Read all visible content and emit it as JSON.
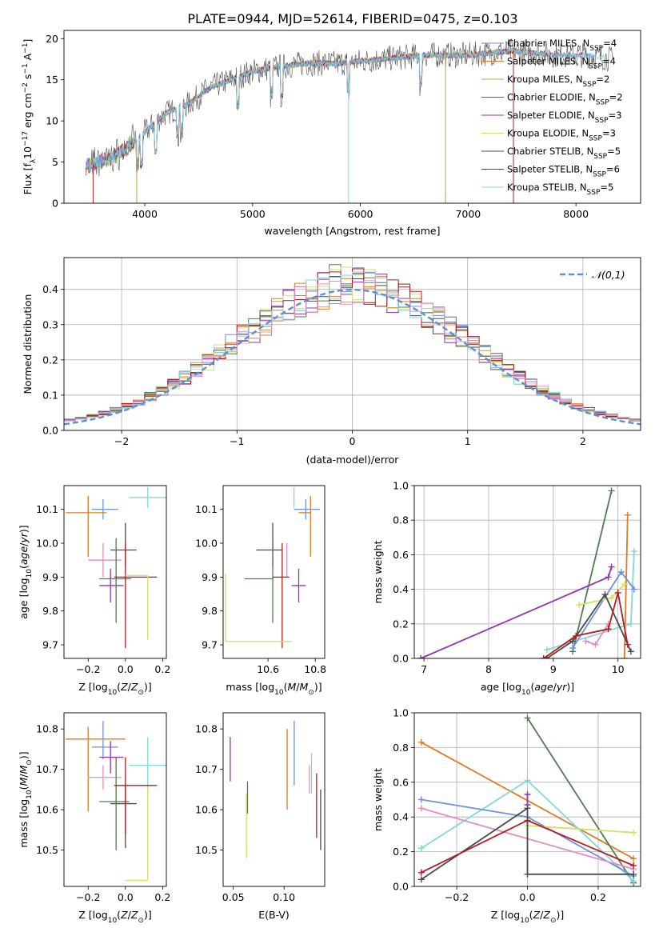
{
  "title": "PLATE=0944, MJD=52614, FIBERID=0475, z=0.103",
  "legend": {
    "names": [
      "Chabrier MILES, N",
      "Salpeter MILES, N",
      "Kroupa MILES, N",
      "Chabrier ELODIE, N",
      "Salpeter ELODIE, N",
      "Kroupa ELODIE, N",
      "Chabrier STELIB, N",
      "Salpeter STELIB, N",
      "Kroupa STELIB, N"
    ],
    "sub": "SSP",
    "nssp": [
      "=4",
      "=4",
      "=2",
      "=2",
      "=3",
      "=3",
      "=5",
      "=6",
      "=5"
    ],
    "colors": [
      "#6f8fe0",
      "#e07b23",
      "#c2a14a",
      "#4f7d4f",
      "#8e35b0",
      "#d4de6c",
      "#4a4a4a",
      "#b51c1c",
      "#83d6de"
    ]
  },
  "panel2_legend": "𝒩(0,1)",
  "chart_data": [
    {
      "type": "line",
      "id": "spectrum",
      "xlabel": "wavelength [Angstrom, rest frame]",
      "ylabel_main": "Flux [f",
      "ylabel_lambda": "λ",
      "ylabel_rest": "10",
      "ylabel_exp": "−17",
      "ylabel_units": " erg cm",
      "ylabel_exp2": "−2",
      "ylabel_units2": " s",
      "ylabel_exp3": "−1",
      "ylabel_units3": " A",
      "ylabel_exp4": "−1",
      "ylabel_close": "]",
      "xlim": [
        3250,
        8600
      ],
      "ylim": [
        0,
        21
      ],
      "xticks": [
        "4000",
        "5000",
        "6000",
        "7000",
        "8000"
      ],
      "yticks": [
        "0",
        "5",
        "10",
        "15",
        "20"
      ],
      "continuum_x": [
        3450,
        3700,
        3950,
        4200,
        4400,
        4600,
        4800,
        5000,
        5200,
        5500,
        5800,
        6200,
        6600,
        7000,
        7400,
        7800,
        8100,
        8350
      ],
      "continuum_y": [
        4.5,
        5.5,
        8,
        11,
        12,
        14,
        15,
        16,
        16.5,
        17,
        17,
        17.5,
        18,
        18,
        18.5,
        18,
        18,
        17.5
      ]
    },
    {
      "type": "bar",
      "id": "residuals",
      "xlabel": "(data-model)/error",
      "ylabel": "Normed distribution",
      "xlim": [
        -2.5,
        2.5
      ],
      "ylim": [
        0,
        0.49
      ],
      "xticks": [
        "−2",
        "−1",
        "0",
        "1",
        "2"
      ],
      "yticks": [
        "0.0",
        "0.1",
        "0.2",
        "0.3",
        "0.4"
      ],
      "bin_width": 0.1,
      "grid": true,
      "legend_position": "upper-right"
    },
    {
      "type": "scatter",
      "id": "age-vs-Z",
      "xlabel": "Z [log",
      "ylabel": "age  [log",
      "xlim": [
        -0.33,
        0.22
      ],
      "ylim": [
        9.66,
        10.17
      ],
      "xticks": [
        "−0.2",
        "0.0",
        "0.2"
      ],
      "yticks": [
        "9.7",
        "9.8",
        "9.9",
        "10.0",
        "10.1"
      ],
      "points": [
        {
          "x": -0.12,
          "y": 10.1,
          "xerr": [
            0.06,
            0.08
          ],
          "yerr": [
            0.03,
            0.03
          ],
          "color": "#6f8fe0"
        },
        {
          "x": -0.2,
          "y": 10.09,
          "xerr": [
            0.12,
            0.1
          ],
          "yerr": [
            0.13,
            0.05
          ],
          "color": "#e07b23"
        },
        {
          "x": 0.12,
          "y": 10.135,
          "xerr": [
            0.1,
            0.14
          ],
          "yerr": [
            0.03,
            0.03
          ],
          "color": "#83d6de"
        },
        {
          "x": -0.12,
          "y": 9.95,
          "xerr": [
            0.08,
            0.1
          ],
          "yerr": [
            0.05,
            0.05
          ],
          "color": "#e38ec3"
        },
        {
          "x": -0.08,
          "y": 9.875,
          "xerr": [
            0.06,
            0.07
          ],
          "yerr": [
            0.05,
            0.05
          ],
          "color": "#8e35b0"
        },
        {
          "x": 0.0,
          "y": 9.98,
          "xerr": [
            0.08,
            0.06
          ],
          "yerr": [
            0.05,
            0.08
          ],
          "color": "#4a4a4a"
        },
        {
          "x": -0.05,
          "y": 9.895,
          "xerr": [
            0.09,
            0.08
          ],
          "yerr": [
            0.13,
            0.12
          ],
          "color": "#4f7d4f"
        },
        {
          "x": 0.0,
          "y": 9.9,
          "xerr": [
            0.06,
            0.17
          ],
          "yerr": [
            0.21,
            0.1
          ],
          "color": "#b51c1c"
        },
        {
          "x": 0.12,
          "y": 9.905,
          "xerr": [
            0.12,
            0.0
          ],
          "yerr": [
            0.19,
            0.0
          ],
          "color": "#d4de6c"
        }
      ]
    },
    {
      "type": "scatter",
      "id": "age-vs-mass",
      "xlabel": "mass [log",
      "ylabel": "",
      "xlim": [
        10.41,
        10.84
      ],
      "ylim": [
        9.66,
        10.17
      ],
      "xticks": [
        "10.6",
        "10.8"
      ],
      "yticks": [
        "9.7",
        "9.8",
        "9.9",
        "10.0",
        "10.1"
      ],
      "points": [
        {
          "x": 10.76,
          "y": 10.1,
          "xerr": [
            0.05,
            0.06
          ],
          "yerr": [
            0.03,
            0.03
          ],
          "color": "#6f8fe0"
        },
        {
          "x": 10.78,
          "y": 10.09,
          "xerr": [
            0.05,
            0.0
          ],
          "yerr": [
            0.13,
            0.05
          ],
          "color": "#e07b23"
        },
        {
          "x": 10.71,
          "y": 10.135,
          "xerr": [
            0.0,
            0.0
          ],
          "yerr": [
            0.03,
            0.03
          ],
          "color": "#83d6de"
        },
        {
          "x": 10.68,
          "y": 9.95,
          "xerr": [
            0.0,
            0.0
          ],
          "yerr": [
            0.05,
            0.05
          ],
          "color": "#e38ec3"
        },
        {
          "x": 10.73,
          "y": 9.875,
          "xerr": [
            0.03,
            0.03
          ],
          "yerr": [
            0.05,
            0.05
          ],
          "color": "#8e35b0"
        },
        {
          "x": 10.62,
          "y": 9.98,
          "xerr": [
            0.07,
            0.04
          ],
          "yerr": [
            0.05,
            0.08
          ],
          "color": "#4a4a4a"
        },
        {
          "x": 10.62,
          "y": 9.895,
          "xerr": [
            0.12,
            0.0
          ],
          "yerr": [
            0.13,
            0.12
          ],
          "color": "#4f7d4f"
        },
        {
          "x": 10.66,
          "y": 9.9,
          "xerr": [
            0.04,
            0.03
          ],
          "yerr": [
            0.21,
            0.1
          ],
          "color": "#b51c1c"
        },
        {
          "x": 10.42,
          "y": 9.71,
          "xerr": [
            0.0,
            0.28
          ],
          "yerr": [
            0.0,
            0.2
          ],
          "color": "#d4de6c"
        }
      ]
    },
    {
      "type": "line",
      "id": "weight-vs-age",
      "xlabel": "age  [log",
      "ylabel": "mass weight",
      "xlim": [
        6.85,
        10.35
      ],
      "ylim": [
        0,
        1
      ],
      "xticks": [
        "7",
        "8",
        "9",
        "10"
      ],
      "yticks": [
        "0.0",
        "0.2",
        "0.4",
        "0.6",
        "0.8",
        "1.0"
      ],
      "grid": true,
      "series": [
        {
          "color": "#4f7d4f",
          "x": [
            9.3,
            9.9
          ],
          "y": [
            0.04,
            0.97
          ]
        },
        {
          "color": "#e07b23",
          "x": [
            10.1,
            10.15
          ],
          "y": [
            0.0,
            0.83
          ]
        },
        {
          "color": "#8e35b0",
          "x": [
            6.95,
            9.85,
            9.9
          ],
          "y": [
            0.0,
            0.47,
            0.53
          ]
        },
        {
          "color": "#83d6de",
          "x": [
            8.9,
            10.2,
            10.25
          ],
          "y": [
            0.05,
            0.2,
            0.62
          ]
        },
        {
          "color": "#6f8fe0",
          "x": [
            9.3,
            10.05,
            10.25
          ],
          "y": [
            0.06,
            0.5,
            0.4
          ]
        },
        {
          "color": "#d4de6c",
          "x": [
            9.4,
            9.9,
            10.1
          ],
          "y": [
            0.31,
            0.35,
            0.43
          ]
        },
        {
          "color": "#4a4a4a",
          "x": [
            8.9,
            9.3,
            9.8,
            10.2
          ],
          "y": [
            0.0,
            0.1,
            0.37,
            0.04
          ]
        },
        {
          "color": "#e38ec3",
          "x": [
            9.5,
            9.65,
            9.85
          ],
          "y": [
            0.1,
            0.08,
            0.2
          ]
        },
        {
          "color": "#b51c1c",
          "x": [
            8.85,
            9.35,
            9.85,
            10.0,
            10.15
          ],
          "y": [
            0.0,
            0.13,
            0.17,
            0.38,
            0.08
          ]
        }
      ]
    },
    {
      "type": "scatter",
      "id": "mass-vs-Z",
      "xlabel": "Z [log",
      "ylabel": "mass [log",
      "xlim": [
        -0.33,
        0.22
      ],
      "ylim": [
        10.41,
        10.84
      ],
      "xticks": [
        "−0.2",
        "0.0",
        "0.2"
      ],
      "yticks": [
        "10.5",
        "10.6",
        "10.7",
        "10.8"
      ],
      "points": [
        {
          "x": -0.12,
          "y": 10.755,
          "xerr": [
            0.06,
            0.08
          ],
          "yerr": [
            0.03,
            0.065
          ],
          "color": "#6f8fe0"
        },
        {
          "x": -0.2,
          "y": 10.775,
          "xerr": [
            0.12,
            0.2
          ],
          "yerr": [
            0.18,
            0.03
          ],
          "color": "#e07b23"
        },
        {
          "x": 0.12,
          "y": 10.71,
          "xerr": [
            0.1,
            0.1
          ],
          "yerr": [
            0.07,
            0.07
          ],
          "color": "#83d6de"
        },
        {
          "x": -0.12,
          "y": 10.68,
          "xerr": [
            0.08,
            0.1
          ],
          "yerr": [
            0.03,
            0.03
          ],
          "color": "#e38ec3"
        },
        {
          "x": -0.08,
          "y": 10.73,
          "xerr": [
            0.06,
            0.07
          ],
          "yerr": [
            0.04,
            0.04
          ],
          "color": "#8e35b0"
        },
        {
          "x": 0.0,
          "y": 10.615,
          "xerr": [
            0.08,
            0.06
          ],
          "yerr": [
            0.11,
            0.05
          ],
          "color": "#4a4a4a"
        },
        {
          "x": -0.05,
          "y": 10.62,
          "xerr": [
            0.09,
            0.07
          ],
          "yerr": [
            0.12,
            0.11
          ],
          "color": "#4f7d4f"
        },
        {
          "x": 0.0,
          "y": 10.66,
          "xerr": [
            0.06,
            0.17
          ],
          "yerr": [
            0.12,
            0.07
          ],
          "color": "#b51c1c"
        },
        {
          "x": 0.12,
          "y": 10.425,
          "xerr": [
            0.12,
            0.0
          ],
          "yerr": [
            0.0,
            0.23
          ],
          "color": "#d4de6c"
        }
      ]
    },
    {
      "type": "scatter",
      "id": "mass-vs-ebv",
      "xlabel": "E(B-V)",
      "ylabel": "",
      "xlim": [
        0.04,
        0.14
      ],
      "ylim": [
        10.41,
        10.84
      ],
      "xticks": [
        "0.05",
        "0.10"
      ],
      "yticks": [
        "10.5",
        "10.6",
        "10.7",
        "10.8"
      ],
      "points": [
        {
          "x": 0.047,
          "y": 10.73,
          "yerr": [
            0.06,
            0.05
          ],
          "color": "#8e35b0"
        },
        {
          "x": 0.063,
          "y": 10.56,
          "yerr": [
            0.08,
            0.08
          ],
          "color": "#d4de6c"
        },
        {
          "x": 0.064,
          "y": 10.62,
          "yerr": [
            0.03,
            0.05
          ],
          "color": "#4f7d4f"
        },
        {
          "x": 0.103,
          "y": 10.7,
          "yerr": [
            0.1,
            0.1
          ],
          "color": "#e07b23"
        },
        {
          "x": 0.11,
          "y": 10.74,
          "yerr": [
            0.08,
            0.08
          ],
          "color": "#6f8fe0"
        },
        {
          "x": 0.127,
          "y": 10.7,
          "yerr": [
            0.06,
            0.04
          ],
          "color": "#83d6de"
        },
        {
          "x": 0.125,
          "y": 10.68,
          "yerr": [
            0.04,
            0.03
          ],
          "color": "#e38ec3"
        },
        {
          "x": 0.132,
          "y": 10.62,
          "yerr": [
            0.09,
            0.07
          ],
          "color": "#b51c1c"
        },
        {
          "x": 0.136,
          "y": 10.57,
          "yerr": [
            0.07,
            0.08
          ],
          "color": "#4a4a4a"
        }
      ]
    },
    {
      "type": "line",
      "id": "weight-vs-Z",
      "xlabel": "Z [log",
      "ylabel": "mass weight",
      "xlim": [
        -0.32,
        0.32
      ],
      "ylim": [
        0,
        1
      ],
      "xticks": [
        "−0.2",
        "0.0",
        "0.2"
      ],
      "yticks": [
        "0.0",
        "0.2",
        "0.4",
        "0.6",
        "0.8",
        "1.0"
      ],
      "grid": true,
      "series": [
        {
          "color": "#e07b23",
          "x": [
            -0.3,
            0.3
          ],
          "y": [
            0.83,
            0.16
          ]
        },
        {
          "color": "#4f7d4f",
          "x": [
            0.0,
            0.3
          ],
          "y": [
            0.97,
            0.02
          ]
        },
        {
          "color": "#83d6de",
          "x": [
            -0.3,
            0.0,
            0.3
          ],
          "y": [
            0.22,
            0.61,
            0.03
          ]
        },
        {
          "color": "#6f8fe0",
          "x": [
            -0.3,
            0.0,
            0.3
          ],
          "y": [
            0.5,
            0.4,
            0.06
          ]
        },
        {
          "color": "#e38ec3",
          "x": [
            -0.3,
            0.3
          ],
          "y": [
            0.45,
            0.1
          ]
        },
        {
          "color": "#d4de6c",
          "x": [
            0.0,
            0.3
          ],
          "y": [
            0.35,
            0.31
          ]
        },
        {
          "color": "#8e35b0",
          "x": [
            0.0,
            0.0
          ],
          "y": [
            0.53,
            0.47
          ]
        },
        {
          "color": "#4a4a4a",
          "x": [
            -0.3,
            0.0,
            0.0,
            0.3
          ],
          "y": [
            0.04,
            0.45,
            0.07,
            0.07
          ]
        },
        {
          "color": "#b51c1c",
          "x": [
            -0.3,
            0.0,
            0.3
          ],
          "y": [
            0.08,
            0.38,
            0.12
          ]
        }
      ]
    }
  ]
}
